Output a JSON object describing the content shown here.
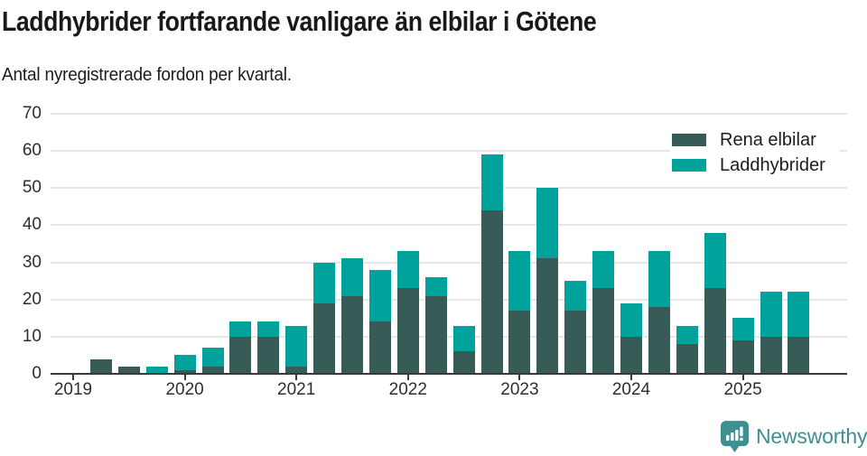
{
  "title": "Laddhybrider fortfarande vanligare än elbilar i Götene",
  "subtitle": "Antal nyregistrerade fordon per kvartal.",
  "footer": {
    "brand": "Newsworthy",
    "color": "#3e8f91"
  },
  "colors": {
    "rena_elbilar": "#375c58",
    "laddhybrider": "#00a39c",
    "gridline": "#e6e6e6",
    "axis": "#3a3a3a"
  },
  "chart_data": {
    "type": "bar",
    "stacked": true,
    "title": "Laddhybrider fortfarande vanligare än elbilar i Götene",
    "subtitle": "Antal nyregistrerade fordon per kvartal.",
    "ylabel": "",
    "xlabel": "",
    "ylim": [
      0,
      70
    ],
    "yticks": [
      0,
      10,
      20,
      30,
      40,
      50,
      60,
      70
    ],
    "grid": "horizontal",
    "legend_position": "top-right",
    "categories": [
      "2019 Q1",
      "2019 Q2",
      "2019 Q3",
      "2019 Q4",
      "2020 Q1",
      "2020 Q2",
      "2020 Q3",
      "2020 Q4",
      "2021 Q1",
      "2021 Q2",
      "2021 Q3",
      "2021 Q4",
      "2022 Q1",
      "2022 Q2",
      "2022 Q3",
      "2022 Q4",
      "2023 Q1",
      "2023 Q2",
      "2023 Q3",
      "2023 Q4",
      "2024 Q1",
      "2024 Q2",
      "2024 Q3",
      "2024 Q4",
      "2025 Q1",
      "2025 Q2",
      "2025 Q3"
    ],
    "series": [
      {
        "name": "Rena elbilar",
        "color": "#375c58",
        "values": [
          0,
          4,
          2,
          0,
          1,
          2,
          10,
          10,
          2,
          19,
          21,
          14,
          23,
          21,
          6,
          44,
          17,
          31,
          17,
          23,
          10,
          18,
          8,
          23,
          9,
          10,
          10
        ]
      },
      {
        "name": "Laddhybrider",
        "color": "#00a39c",
        "values": [
          0,
          0,
          0,
          2,
          4,
          5,
          4,
          4,
          11,
          11,
          10,
          14,
          10,
          5,
          7,
          15,
          16,
          19,
          8,
          10,
          9,
          15,
          5,
          15,
          6,
          12,
          12
        ]
      }
    ],
    "x_year_labels": [
      {
        "label": "2019",
        "index": 0
      },
      {
        "label": "2020",
        "index": 4
      },
      {
        "label": "2021",
        "index": 8
      },
      {
        "label": "2022",
        "index": 12
      },
      {
        "label": "2023",
        "index": 16
      },
      {
        "label": "2024",
        "index": 20
      },
      {
        "label": "2025",
        "index": 24
      }
    ]
  }
}
